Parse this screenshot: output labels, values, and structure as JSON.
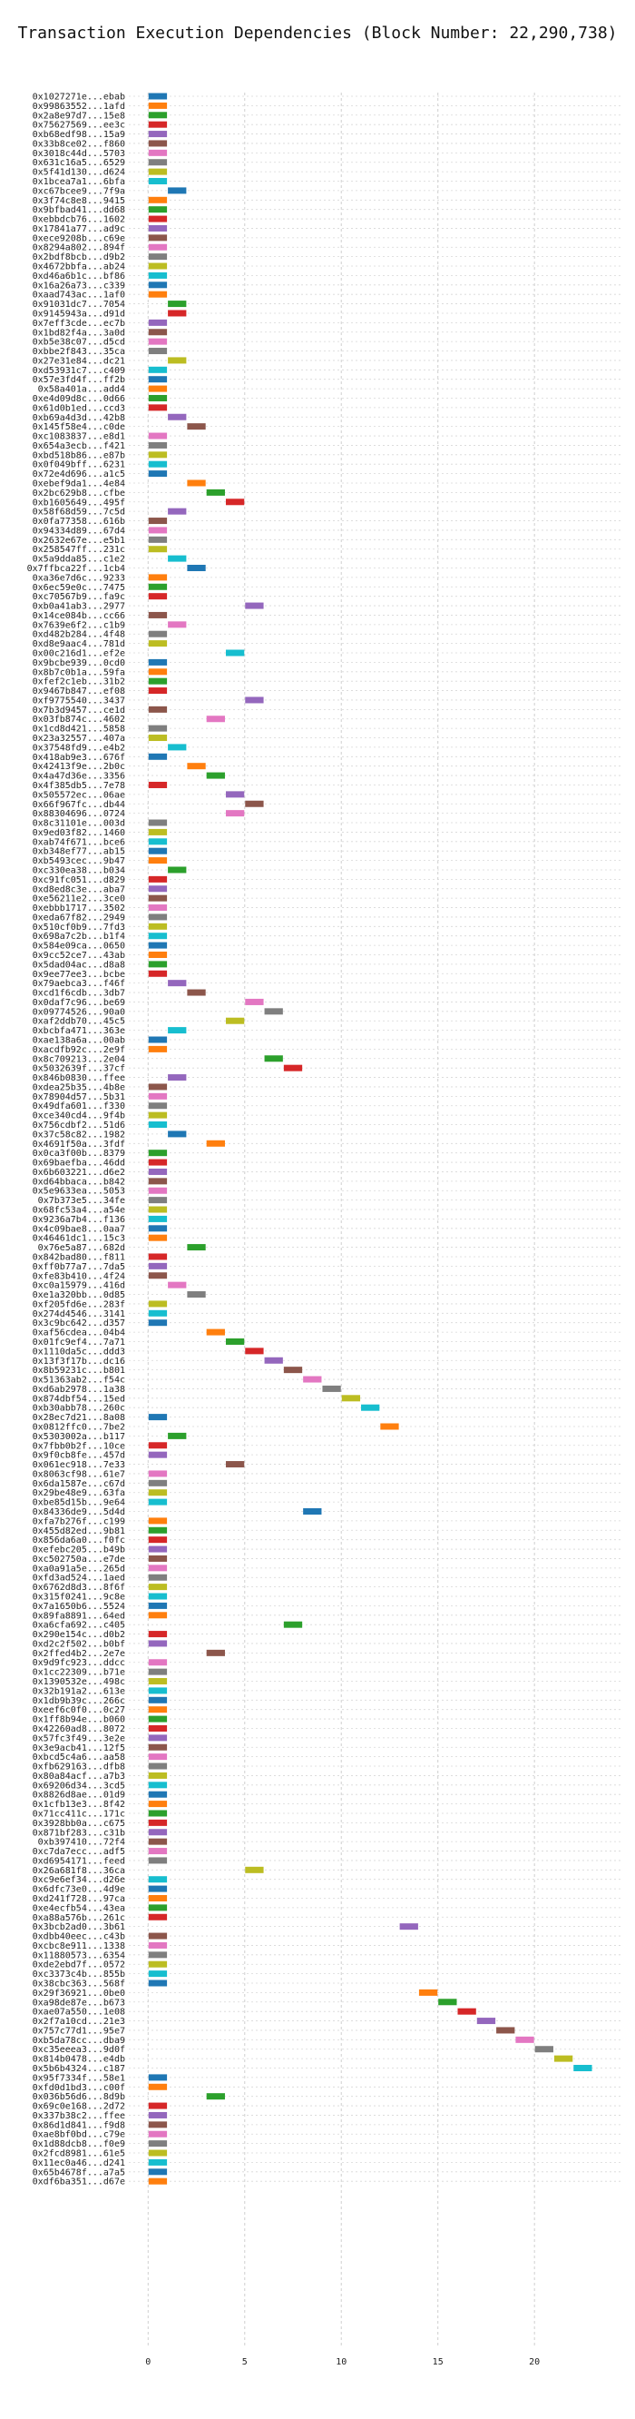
{
  "chart_data": {
    "type": "bar",
    "orientation": "horizontal-gantt",
    "title": "Transaction Execution Dependencies (Block Number: 22,290,738)",
    "xlabel": "",
    "ylabel": "",
    "xlim": [
      -1,
      24.5
    ],
    "xticks": [
      0,
      5,
      10,
      15,
      20
    ],
    "grid": true,
    "palette": [
      "#1f77b4",
      "#ff7f0e",
      "#2ca02c",
      "#d62728",
      "#9467bd",
      "#8c564b",
      "#e377c2",
      "#7f7f7f",
      "#bcbd22",
      "#17becf"
    ],
    "transactions": [
      "0x1027271e...ebab",
      "0x99863552...1afd",
      "0x2a8e97d7...15e8",
      "0x75627569...ee3c",
      "0xb68edf98...15a9",
      "0x33b8ce02...f860",
      "0x3018c44d...5703",
      "0x631c16a5...6529",
      "0x5f41d130...d624",
      "0x1bcea7a1...6bfa",
      "0xc67bcee9...7f9a",
      "0x3f74c8e8...9415",
      "0x9bfbad41...dd68",
      "0xebbdcb76...1602",
      "0x17841a77...ad9c",
      "0xece9208b...c69e",
      "0x8294a802...894f",
      "0x2bdf8bcb...d9b2",
      "0x4672bbfa...ab24",
      "0xd46a6b1c...bf86",
      "0x16a26a73...c339",
      "0xaad743ac...1af0",
      "0x91031dc7...7054",
      "0x9145943a...d91d",
      "0x7eff3cde...ec7b",
      "0x1bd82f4a...3a0d",
      "0xb5e38c07...d5cd",
      "0xbbe2f843...35ca",
      "0x27e31e84...dc21",
      "0xd53931c7...c409",
      "0x57e3fd4f...ff2b",
      "0x58a401a...add4",
      "0xe4d09d8c...0d66",
      "0x61d0b1ed...ccd3",
      "0xb69a4d3d...42b8",
      "0x145f58e4...c0de",
      "0xc1083837...e8d1",
      "0x654a3ecb...f421",
      "0xbd518b86...e87b",
      "0x0f049bff...6231",
      "0x72e4d696...a1c5",
      "0xebef9da1...4e84",
      "0x2bc629b8...cfbe",
      "0xb1605649...495f",
      "0x58f68d59...7c5d",
      "0x0fa77358...616b",
      "0x94334d89...67d4",
      "0x2632e67e...e5b1",
      "0x258547ff...231c",
      "0x5a9dda85...c1e2",
      "0x7ffbca22f...1cb4",
      "0xa36e7d6c...9233",
      "0x6ec59e0c...7475",
      "0xc70567b9...fa9c",
      "0xb0a41ab3...2977",
      "0x14ce084b...cc66",
      "0x7639e6f2...c1b9",
      "0xd482b284...4f48",
      "0xd8e9aac4...781d",
      "0x00c216d1...ef2e",
      "0x9bcbe939...0cd0",
      "0x8b7c0b1a...59fa",
      "0xfef2c1eb...31b2",
      "0x9467b847...ef08",
      "0xf9775540...3437",
      "0x7b3d9457...ce1d",
      "0x03fb874c...4602",
      "0x1cd8d421...5858",
      "0x23a32557...407a",
      "0x37548fd9...e4b2",
      "0x418ab9e3...676f",
      "0x42413f9e...2b0c",
      "0x4a47d36e...3356",
      "0x4f385db5...7e78",
      "0x505572ec...06ae",
      "0x66f967fc...db44",
      "0x88304696...0724",
      "0x8c31101e...003d",
      "0x9ed03f82...1460",
      "0xab74f671...bce6",
      "0xb348ef77...ab15",
      "0xb5493cec...9b47",
      "0xc330ea38...b034",
      "0xc91fc051...d829",
      "0xd8ed8c3e...aba7",
      "0xe56211e2...3ce0",
      "0xebbb1717...3502",
      "0xeda67f82...2949",
      "0x510cf0b9...7fd3",
      "0x698a7c2b...b1f4",
      "0x584e09ca...0650",
      "0x9cc52ce7...43ab",
      "0x5dad04ac...d8a8",
      "0x9ee77ee3...bcbe",
      "0x79aebca3...f46f",
      "0xcd1f6cdb...3db7",
      "0x0daf7c96...be69",
      "0x09774526...90a0",
      "0xaf2ddb70...45c5",
      "0xbcbfa471...363e",
      "0xae138a6a...00ab",
      "0xacdfb92c...2e9f",
      "0x8c709213...2e04",
      "0x5032639f...37cf",
      "0x846b0830...ffee",
      "0xdea25b35...4b8e",
      "0x78904d57...5b31",
      "0x49dfa601...f330",
      "0xce340cd4...9f4b",
      "0x756cdbf2...51d6",
      "0x37c58c82...1982",
      "0x4691f50a...3fdf",
      "0x0ca3f00b...8379",
      "0x69baefba...46dd",
      "0x6b603221...d6e2",
      "0xd64bbaca...b842",
      "0x5e9633ea...5053",
      "0x7b373e5...34fe",
      "0x68fc53a4...a54e",
      "0x9236a7b4...f136",
      "0x4c09bae8...0aa7",
      "0x46461dc1...15c3",
      "0x76e5a87...682d",
      "0x842bad80...f811",
      "0xff0b77a7...7da5",
      "0xfe83b410...4f24",
      "0xc0a15979...416d",
      "0xe1a320bb...0d85",
      "0xf205fd6e...283f",
      "0x274d4546...3141",
      "0x3c9bc642...d357",
      "0xaf56cdea...04b4",
      "0x01fc9ef4...7a71",
      "0x1110da5c...ddd3",
      "0x13f3f17b...dc16",
      "0x8b59231c...b801",
      "0x51363ab2...f54c",
      "0xd6ab2978...1a38",
      "0x874dbf54...15ed",
      "0xb30abb78...260c",
      "0x28ec7d21...8a08",
      "0x0812ffc0...7be2",
      "0x5303002a...b117",
      "0x7fbb0b2f...10ce",
      "0x9f0cb8fe...457d",
      "0x061ec918...7e33",
      "0x8063cf98...61e7",
      "0x6da1587e...c67d",
      "0x29be48e9...63fa",
      "0xbe85d15b...9e64",
      "0x84336de9...5d4d",
      "0xfa7b276f...c199",
      "0x455d82ed...9b81",
      "0x856da6a0...f0fc",
      "0xefebc205...b49b",
      "0xc502750a...e7de",
      "0xa0a91a5e...265d",
      "0xfd3ad524...1aed",
      "0x6762d8d3...8f6f",
      "0x315f0241...9c8e",
      "0x7a1650b6...5524",
      "0x89fa8891...64ed",
      "0xa6cfa692...c405",
      "0x290e154c...d0b2",
      "0xd2c2f502...b0bf",
      "0x2ffed4b2...2e7e",
      "0x9d9fc923...ddcc",
      "0x1cc22309...b71e",
      "0x1390532e...498c",
      "0x32b191a2...613e",
      "0x1db9b39c...266c",
      "0xeef6c0f0...0c27",
      "0x1ff8b94e...b060",
      "0x42260ad8...8072",
      "0x57fc3f49...3e2e",
      "0x3e9acb41...12f5",
      "0xbcd5c4a6...aa58",
      "0xfb629163...dfb8",
      "0x80a84acf...a7b3",
      "0x69206d34...3cd5",
      "0x8826d8ae...01d9",
      "0x1cfb13e3...8f42",
      "0x71cc411c...171c",
      "0x3928bb0a...c675",
      "0x871bf283...c31b",
      "0xb397410...72f4",
      "0xc7da7ecc...adf5",
      "0xd6954171...feed",
      "0x26a681f8...36ca",
      "0xc9e6ef34...d26e",
      "0x6dfc73e0...4d9e",
      "0xd241f728...97ca",
      "0xe4ecfb54...43ea",
      "0xa88a576b...261c",
      "0x3bcb2ad0...3b61",
      "0xdbb40eec...c43b",
      "0xcbc8e911...1338",
      "0x11880573...6354",
      "0xde2ebd7f...0572",
      "0xc3373c4b...855b",
      "0x38cbc363...568f",
      "0x29f36921...0be0",
      "0xa98de87e...b673",
      "0xae07a550...1e08",
      "0x2f7a10cd...21e3",
      "0x757c77d1...95e7",
      "0xb5da78cc...dba9",
      "0xc35eeea3...9d0f",
      "0x814b0478...e4db",
      "0x5b6b4324...c187",
      "0x95f7334f...58e1",
      "0xfd0d1bd3...c00f",
      "0x036b56d6...8d9b",
      "0x69c0e168...2d72",
      "0x337b38c2...ffee",
      "0x86d1d841...f9d8",
      "0xae8bf0bd...c79e",
      "0x1d88dcb8...f0e9",
      "0x2fcd8981...61e5",
      "0x11ec0a46...d241",
      "0x65b4678f...a7a5",
      "0xdf6ba351...d67e"
    ],
    "start_times": [
      0,
      0,
      0,
      0,
      0,
      0,
      0,
      0,
      0,
      0,
      1,
      0,
      0,
      0,
      0,
      0,
      0,
      0,
      0,
      0,
      0,
      0,
      1,
      1,
      0,
      0,
      0,
      0,
      1,
      0,
      0,
      0,
      0,
      0,
      1,
      2,
      0,
      0,
      0,
      0,
      0,
      2,
      3,
      4,
      1,
      0,
      0,
      0,
      0,
      1,
      2,
      0,
      0,
      0,
      5,
      0,
      1,
      0,
      0,
      4,
      0,
      0,
      0,
      0,
      5,
      0,
      3,
      0,
      0,
      1,
      0,
      2,
      3,
      0,
      4,
      5,
      4,
      0,
      0,
      0,
      0,
      0,
      1,
      0,
      0,
      0,
      0,
      0,
      0,
      0,
      0,
      0,
      0,
      0,
      1,
      2,
      5,
      6,
      4,
      1,
      0,
      0,
      6,
      7,
      1,
      0,
      0,
      0,
      0,
      0,
      1,
      3,
      0,
      0,
      0,
      0,
      0,
      0,
      0,
      0,
      0,
      0,
      2,
      0,
      0,
      0,
      1,
      2,
      0,
      0,
      0,
      3,
      4,
      5,
      6,
      7,
      8,
      9,
      10,
      11,
      0,
      12,
      1,
      0,
      0,
      4,
      0,
      0,
      0,
      0,
      8,
      0,
      0,
      0,
      0,
      0,
      0,
      0,
      0,
      0,
      0,
      0,
      7,
      0,
      0,
      3,
      0,
      0,
      0,
      0,
      0,
      0,
      0,
      0,
      0,
      0,
      0,
      0,
      0,
      0,
      0,
      0,
      0,
      0,
      0,
      0,
      0,
      0,
      5,
      0,
      0,
      0,
      0,
      0,
      13,
      0,
      0,
      0,
      0,
      0,
      0,
      14,
      15,
      16,
      17,
      18,
      19,
      20,
      21,
      22,
      0,
      0,
      3,
      0,
      0,
      0,
      0,
      0,
      0,
      0,
      0,
      0
    ]
  }
}
